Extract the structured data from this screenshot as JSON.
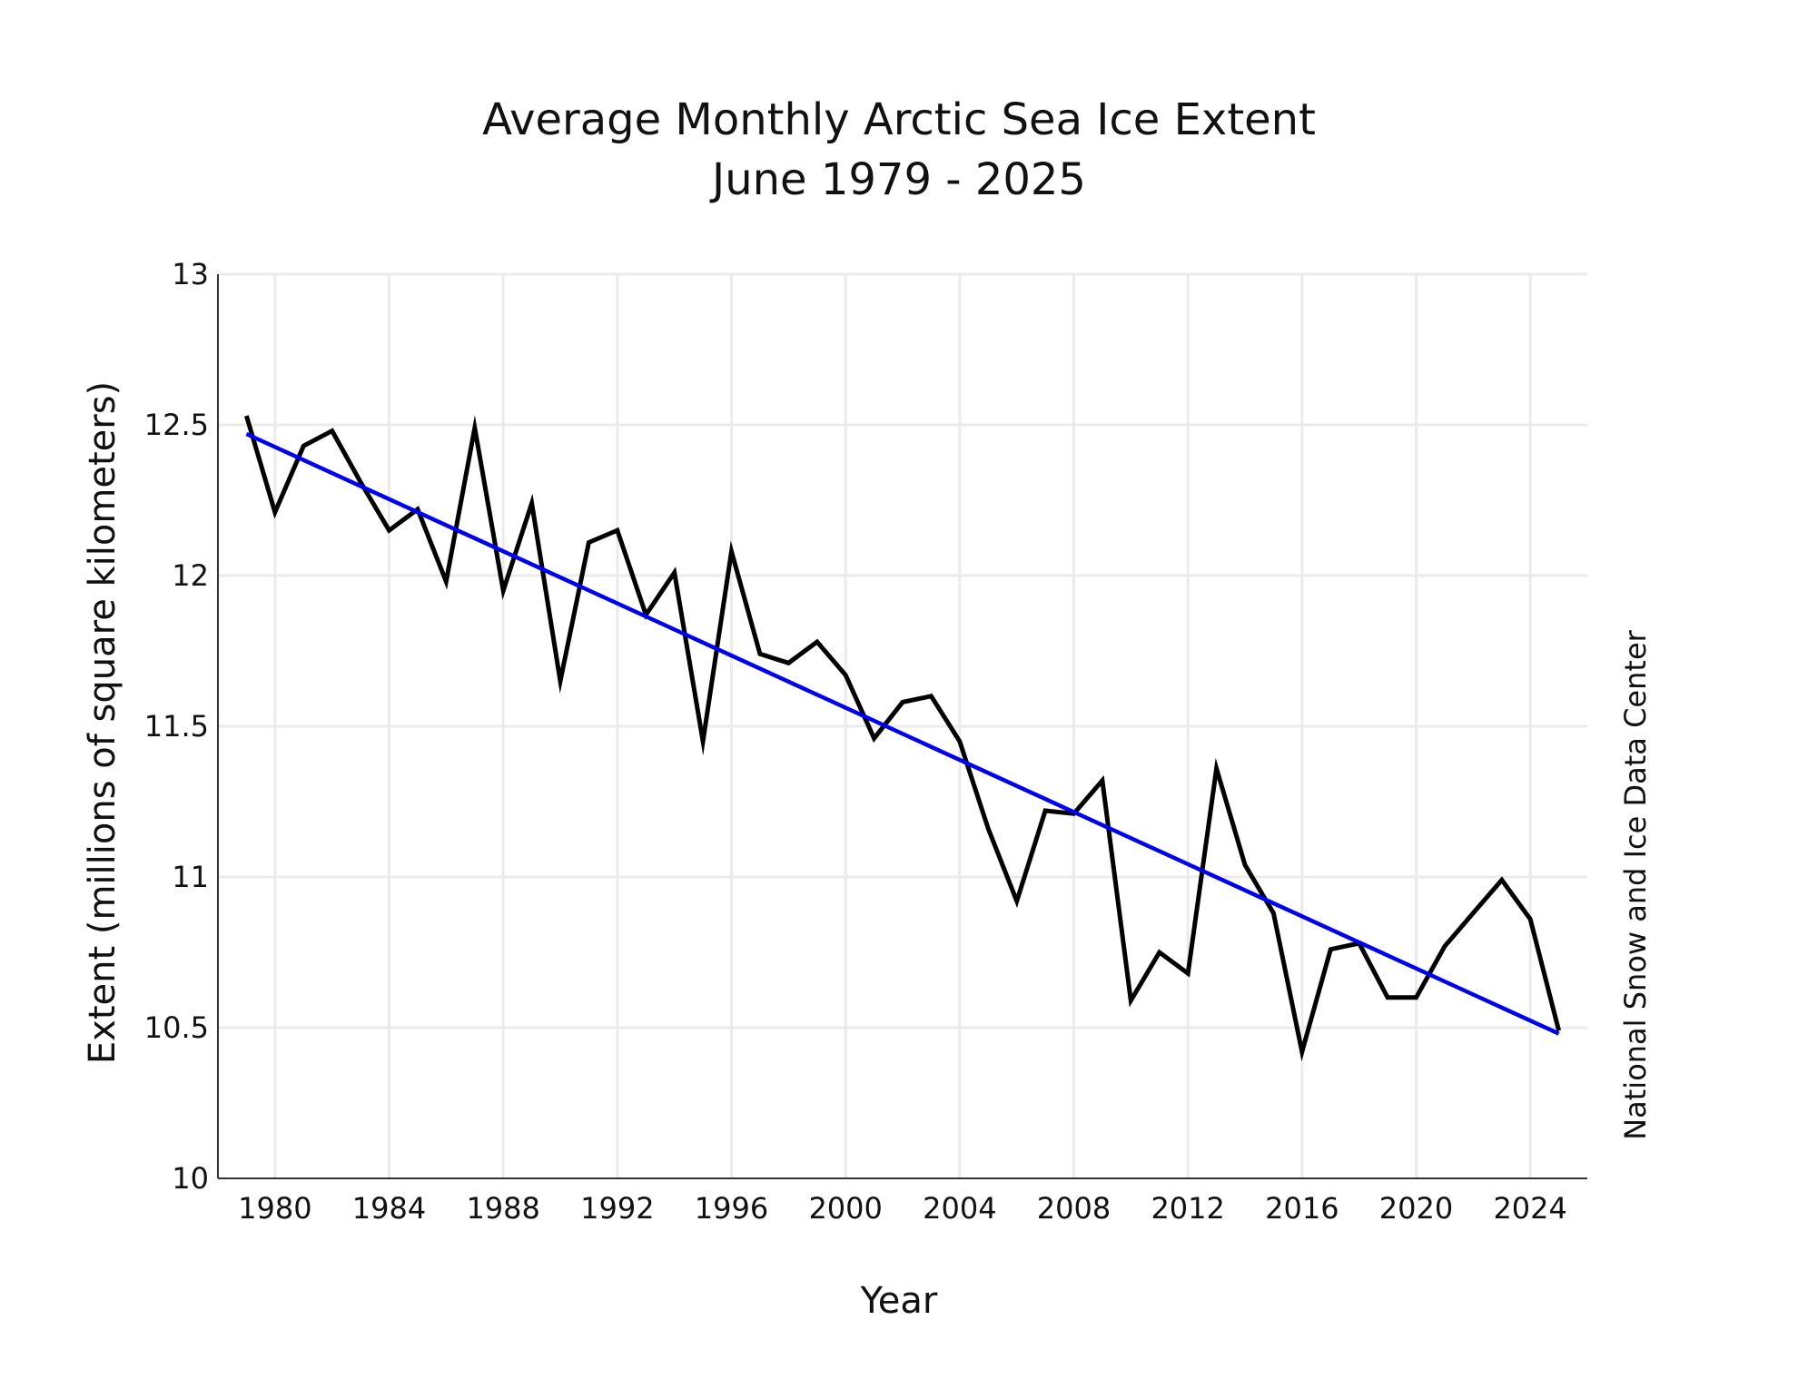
{
  "chart_data": {
    "type": "line",
    "title": [
      "Average Monthly Arctic Sea Ice Extent",
      "June 1979 - 2025"
    ],
    "xlabel": "Year",
    "ylabel": "Extent (millions of square kilometers)",
    "credit": "National Snow and Ice Data Center",
    "xlim": [
      1978,
      2026
    ],
    "ylim": [
      10,
      13
    ],
    "xticks": [
      1980,
      1984,
      1988,
      1992,
      1996,
      2000,
      2004,
      2008,
      2012,
      2016,
      2020,
      2024
    ],
    "yticks": [
      10,
      10.5,
      11,
      11.5,
      12,
      12.5,
      13
    ],
    "ytick_labels": [
      "10",
      "10.5",
      "11",
      "11.5",
      "12",
      "12.5",
      "13"
    ],
    "grid": true,
    "colors": {
      "extent": "#000000",
      "trend": "#0000ee",
      "grid": "#ebebeb",
      "axis": "#333333"
    },
    "series": [
      {
        "role": "extent",
        "x": [
          1979,
          1980,
          1981,
          1982,
          1983,
          1984,
          1985,
          1986,
          1987,
          1988,
          1989,
          1990,
          1991,
          1992,
          1993,
          1994,
          1995,
          1996,
          1997,
          1998,
          1999,
          2000,
          2001,
          2002,
          2003,
          2004,
          2005,
          2006,
          2007,
          2008,
          2009,
          2010,
          2011,
          2012,
          2013,
          2014,
          2015,
          2016,
          2017,
          2018,
          2019,
          2020,
          2021,
          2022,
          2023,
          2024,
          2025
        ],
        "values": [
          12.53,
          12.21,
          12.43,
          12.48,
          12.31,
          12.15,
          12.22,
          11.98,
          12.49,
          11.95,
          12.24,
          11.65,
          12.11,
          12.15,
          11.87,
          12.01,
          11.45,
          12.08,
          11.74,
          11.71,
          11.78,
          11.67,
          11.46,
          11.58,
          11.6,
          11.45,
          11.16,
          10.92,
          11.22,
          11.21,
          11.32,
          10.59,
          10.75,
          10.68,
          11.36,
          11.04,
          10.88,
          10.42,
          10.76,
          10.78,
          10.6,
          10.6,
          10.77,
          10.88,
          10.99,
          10.86,
          10.49
        ]
      },
      {
        "role": "trend",
        "x": [
          1979,
          2025
        ],
        "values": [
          12.47,
          10.48
        ]
      }
    ]
  }
}
